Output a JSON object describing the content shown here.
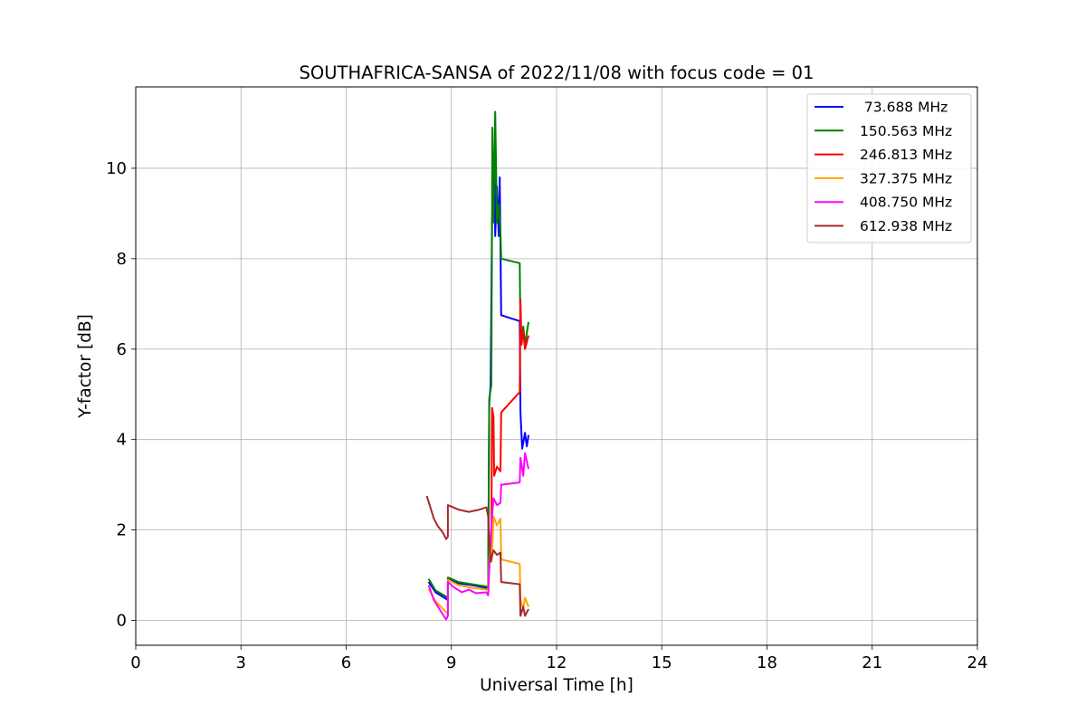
{
  "chart_data": {
    "type": "line",
    "title": "SOUTHAFRICA-SANSA of 2022/11/08 with focus code = 01",
    "xlabel": "Universal Time [h]",
    "ylabel": "Y-factor [dB]",
    "xlim": [
      0,
      24
    ],
    "ylim": [
      -0.55,
      11.8
    ],
    "xticks": [
      0,
      3,
      6,
      9,
      12,
      15,
      18,
      21,
      24
    ],
    "yticks": [
      0,
      2,
      4,
      6,
      8,
      10
    ],
    "grid": true,
    "legend_position": "top-right",
    "series": [
      {
        "name": " 73.688 MHz",
        "color": "#0000ff",
        "points": [
          [
            8.35,
            0.85
          ],
          [
            8.55,
            0.62
          ],
          [
            8.8,
            0.5
          ],
          [
            8.9,
            0.45
          ],
          [
            8.9,
            0.93
          ],
          [
            9.2,
            0.82
          ],
          [
            9.6,
            0.78
          ],
          [
            10.0,
            0.72
          ],
          [
            10.05,
            0.7
          ],
          [
            10.08,
            4.8
          ],
          [
            10.12,
            5.2
          ],
          [
            10.16,
            8.8
          ],
          [
            10.22,
            10.3
          ],
          [
            10.25,
            8.5
          ],
          [
            10.3,
            9.6
          ],
          [
            10.35,
            8.5
          ],
          [
            10.38,
            9.8
          ],
          [
            10.4,
            8.3
          ],
          [
            10.42,
            6.75
          ],
          [
            10.95,
            6.62
          ],
          [
            10.97,
            4.6
          ],
          [
            11.02,
            3.8
          ],
          [
            11.1,
            4.15
          ],
          [
            11.15,
            3.85
          ],
          [
            11.2,
            4.1
          ]
        ]
      },
      {
        "name": "150.563 MHz",
        "color": "#008000",
        "points": [
          [
            8.35,
            0.92
          ],
          [
            8.55,
            0.66
          ],
          [
            8.8,
            0.55
          ],
          [
            8.9,
            0.5
          ],
          [
            8.9,
            0.95
          ],
          [
            9.2,
            0.85
          ],
          [
            9.6,
            0.8
          ],
          [
            10.0,
            0.75
          ],
          [
            10.05,
            0.75
          ],
          [
            10.08,
            4.9
          ],
          [
            10.14,
            5.2
          ],
          [
            10.17,
            10.9
          ],
          [
            10.2,
            8.8
          ],
          [
            10.25,
            11.25
          ],
          [
            10.3,
            8.8
          ],
          [
            10.35,
            9.2
          ],
          [
            10.4,
            8.6
          ],
          [
            10.42,
            8.0
          ],
          [
            10.95,
            7.9
          ],
          [
            10.97,
            6.2
          ],
          [
            11.05,
            6.5
          ],
          [
            11.1,
            6.1
          ],
          [
            11.2,
            6.6
          ]
        ]
      },
      {
        "name": "246.813 MHz",
        "color": "#ff0000",
        "points": [
          [
            10.1,
            1.7
          ],
          [
            10.14,
            1.5
          ],
          [
            10.16,
            4.7
          ],
          [
            10.2,
            4.5
          ],
          [
            10.22,
            3.2
          ],
          [
            10.3,
            3.4
          ],
          [
            10.4,
            3.3
          ],
          [
            10.42,
            4.6
          ],
          [
            10.95,
            5.05
          ],
          [
            10.97,
            7.1
          ],
          [
            11.0,
            6.1
          ],
          [
            11.05,
            6.4
          ],
          [
            11.1,
            6.0
          ],
          [
            11.2,
            6.3
          ]
        ]
      },
      {
        "name": "327.375 MHz",
        "color": "#ffa500",
        "points": [
          [
            8.35,
            0.7
          ],
          [
            8.55,
            0.42
          ],
          [
            8.8,
            0.22
          ],
          [
            8.9,
            0.15
          ],
          [
            8.9,
            0.9
          ],
          [
            9.2,
            0.78
          ],
          [
            9.6,
            0.72
          ],
          [
            10.0,
            0.68
          ],
          [
            10.05,
            0.7
          ],
          [
            10.1,
            1.7
          ],
          [
            10.15,
            1.3
          ],
          [
            10.2,
            2.3
          ],
          [
            10.3,
            2.1
          ],
          [
            10.4,
            2.25
          ],
          [
            10.42,
            1.35
          ],
          [
            10.95,
            1.25
          ],
          [
            10.97,
            0.45
          ],
          [
            11.05,
            0.25
          ],
          [
            11.1,
            0.5
          ],
          [
            11.2,
            0.3
          ]
        ]
      },
      {
        "name": "408.750 MHz",
        "color": "#ff00ff",
        "points": [
          [
            8.35,
            0.78
          ],
          [
            8.5,
            0.45
          ],
          [
            8.7,
            0.2
          ],
          [
            8.85,
            0.02
          ],
          [
            8.9,
            0.1
          ],
          [
            8.9,
            0.85
          ],
          [
            9.1,
            0.72
          ],
          [
            9.3,
            0.62
          ],
          [
            9.5,
            0.68
          ],
          [
            9.7,
            0.6
          ],
          [
            10.0,
            0.62
          ],
          [
            10.05,
            0.55
          ],
          [
            10.1,
            1.5
          ],
          [
            10.15,
            2.2
          ],
          [
            10.2,
            2.7
          ],
          [
            10.3,
            2.55
          ],
          [
            10.4,
            2.6
          ],
          [
            10.42,
            3.0
          ],
          [
            10.95,
            3.05
          ],
          [
            10.97,
            3.6
          ],
          [
            11.05,
            3.2
          ],
          [
            11.1,
            3.7
          ],
          [
            11.2,
            3.35
          ]
        ]
      },
      {
        "name": "612.938 MHz",
        "color": "#a52a2a",
        "points": [
          [
            8.3,
            2.75
          ],
          [
            8.4,
            2.5
          ],
          [
            8.5,
            2.25
          ],
          [
            8.6,
            2.1
          ],
          [
            8.75,
            1.95
          ],
          [
            8.85,
            1.8
          ],
          [
            8.9,
            1.85
          ],
          [
            8.9,
            2.55
          ],
          [
            9.2,
            2.45
          ],
          [
            9.5,
            2.4
          ],
          [
            9.8,
            2.45
          ],
          [
            10.0,
            2.5
          ],
          [
            10.05,
            2.3
          ],
          [
            10.08,
            1.8
          ],
          [
            10.12,
            1.3
          ],
          [
            10.2,
            1.55
          ],
          [
            10.3,
            1.45
          ],
          [
            10.4,
            1.5
          ],
          [
            10.42,
            0.85
          ],
          [
            10.95,
            0.8
          ],
          [
            10.97,
            0.1
          ],
          [
            11.05,
            0.3
          ],
          [
            11.1,
            0.1
          ],
          [
            11.2,
            0.25
          ]
        ]
      }
    ]
  }
}
